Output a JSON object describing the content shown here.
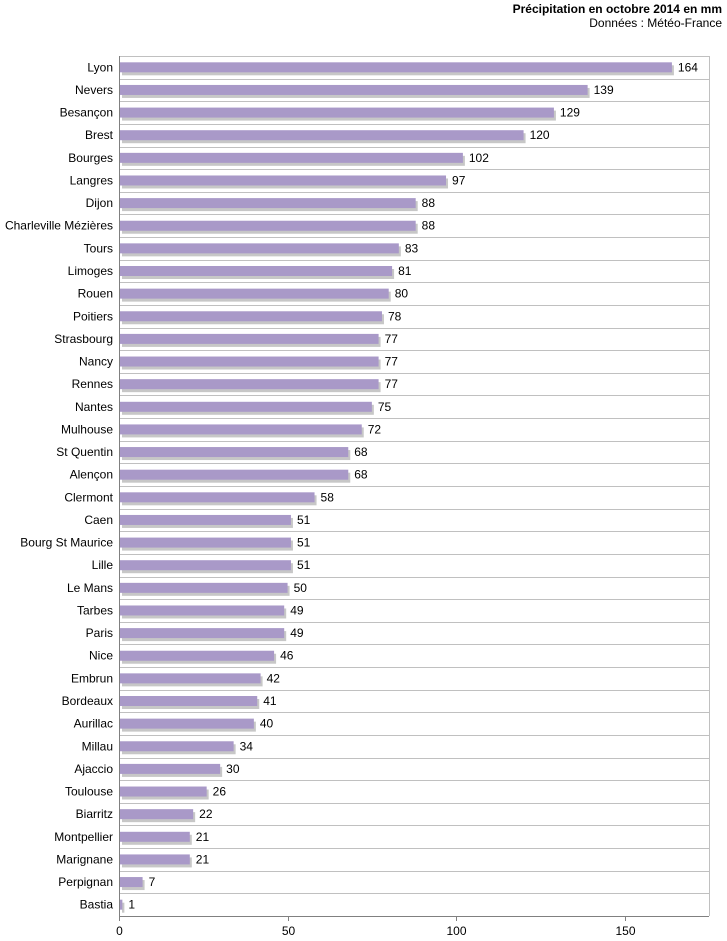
{
  "chart_data": {
    "type": "bar",
    "orientation": "horizontal",
    "title": "Précipitation en octobre 2014 en mm",
    "subtitle": "Données : Météo-France",
    "xlabel": "",
    "ylabel": "",
    "xlim": [
      0,
      175
    ],
    "x_ticks": [
      0,
      50,
      100,
      150
    ],
    "grid": "horizontal",
    "bar_color": "#a999c8",
    "shadow_color": "#c7c7c7",
    "grid_color": "#c0c0c0",
    "axis_color": "#808080",
    "categories": [
      "Lyon",
      "Nevers",
      "Besançon",
      "Brest",
      "Bourges",
      "Langres",
      "Dijon",
      "Charleville Mézières",
      "Tours",
      "Limoges",
      "Rouen",
      "Poitiers",
      "Strasbourg",
      "Nancy",
      "Rennes",
      "Nantes",
      "Mulhouse",
      "St Quentin",
      "Alençon",
      "Clermont",
      "Caen",
      "Bourg St Maurice",
      "Lille",
      "Le Mans",
      "Tarbes",
      "Paris",
      "Nice",
      "Embrun",
      "Bordeaux",
      "Aurillac",
      "Millau",
      "Ajaccio",
      "Toulouse",
      "Biarritz",
      "Montpellier",
      "Marignane",
      "Perpignan",
      "Bastia"
    ],
    "values": [
      164,
      139,
      129,
      120,
      102,
      97,
      88,
      88,
      83,
      81,
      80,
      78,
      77,
      77,
      77,
      75,
      72,
      68,
      68,
      58,
      51,
      51,
      51,
      50,
      49,
      49,
      46,
      42,
      41,
      40,
      34,
      30,
      26,
      22,
      21,
      21,
      7,
      1
    ]
  }
}
